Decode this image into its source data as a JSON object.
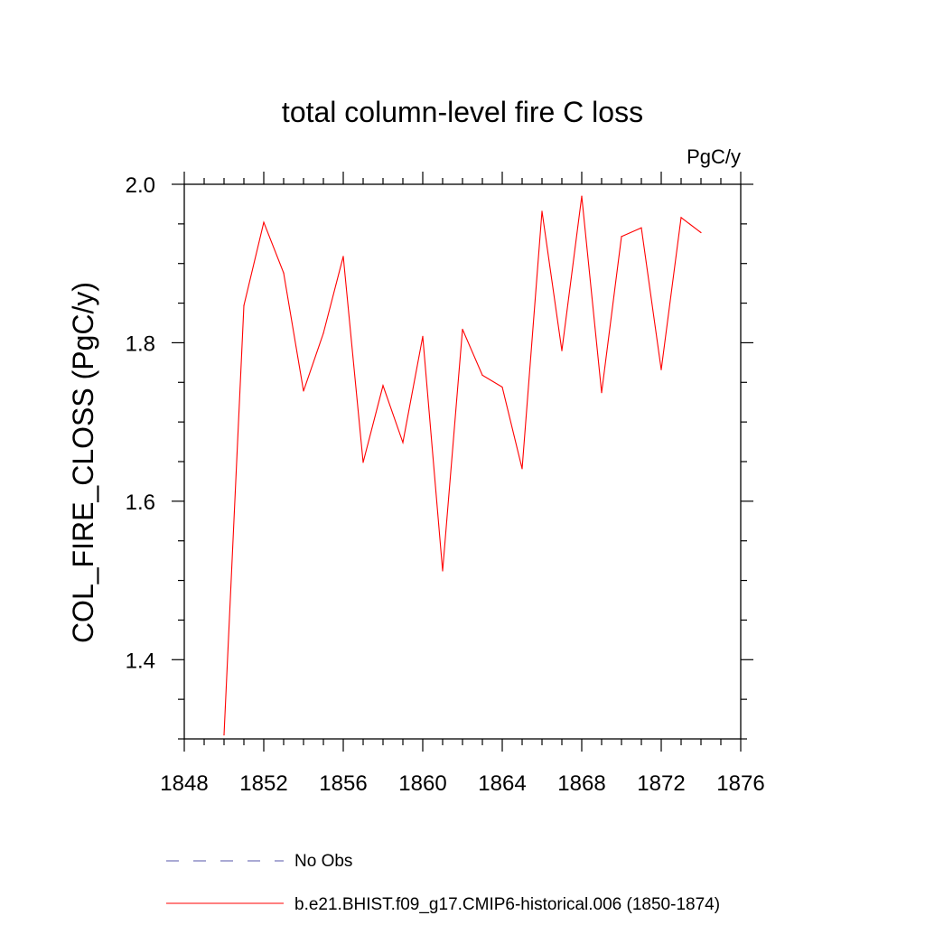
{
  "chart_data": {
    "type": "line",
    "title": "total column-level fire C loss",
    "units_label": "PgC/y",
    "ylabel": "COL_FIRE_CLOSS  (PgC/y)",
    "xlabel": "",
    "xlim": [
      1848,
      1876
    ],
    "ylim": [
      1.3,
      2.0
    ],
    "x_ticks": [
      1848,
      1852,
      1856,
      1860,
      1864,
      1868,
      1872,
      1876
    ],
    "x_tick_labels": [
      "1848",
      "1852",
      "1856",
      "1860",
      "1864",
      "1868",
      "1872",
      "1876"
    ],
    "y_ticks": [
      1.4,
      1.6,
      1.8,
      2.0
    ],
    "y_tick_labels": [
      "1.4",
      "1.6",
      "1.8",
      "2.0"
    ],
    "grid": false,
    "legend_position": "bottom",
    "series": [
      {
        "name": "b.e21.BHIST.f09_g17.CMIP6-historical.006 (1850-1874)",
        "color": "#ff0000",
        "dash": "solid",
        "x": [
          1850,
          1851,
          1852,
          1853,
          1854,
          1855,
          1856,
          1857,
          1858,
          1859,
          1860,
          1861,
          1862,
          1863,
          1864,
          1865,
          1866,
          1867,
          1868,
          1869,
          1870,
          1871,
          1872,
          1873,
          1874
        ],
        "y": [
          1.305,
          1.847,
          1.952,
          1.888,
          1.739,
          1.812,
          1.909,
          1.649,
          1.746,
          1.674,
          1.808,
          1.512,
          1.817,
          1.759,
          1.744,
          1.641,
          1.966,
          1.79,
          1.985,
          1.737,
          1.934,
          1.945,
          1.766,
          1.958,
          1.939
        ]
      }
    ],
    "legend": [
      {
        "label": "No Obs",
        "color": "#5555aa",
        "dash": "dashed"
      },
      {
        "label": "b.e21.BHIST.f09_g17.CMIP6-historical.006 (1850-1874)",
        "color": "#ff0000",
        "dash": "solid"
      }
    ]
  }
}
